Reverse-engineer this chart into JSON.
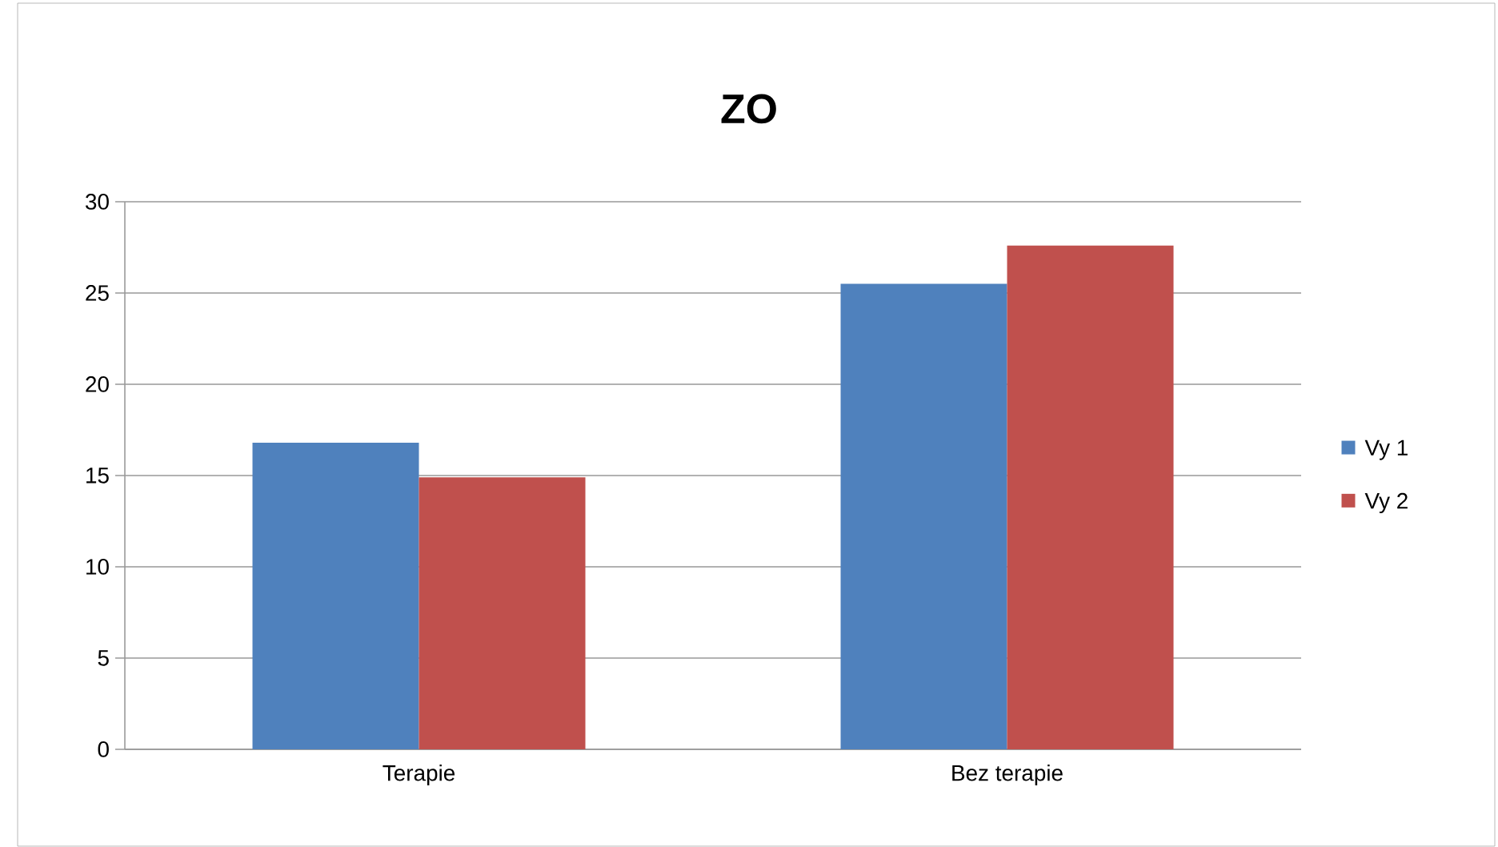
{
  "chart_data": {
    "type": "bar",
    "title": "ZO",
    "categories": [
      "Terapie",
      "Bez terapie"
    ],
    "series": [
      {
        "name": "Vy 1",
        "color": "#4f81bd",
        "values": [
          16.8,
          25.5
        ]
      },
      {
        "name": "Vy 2",
        "color": "#c0504d",
        "values": [
          14.9,
          27.6
        ]
      }
    ],
    "ylim": [
      0,
      30
    ],
    "yticks": [
      0,
      5,
      10,
      15,
      20,
      25,
      30
    ],
    "grid": "y",
    "legend": "right"
  }
}
